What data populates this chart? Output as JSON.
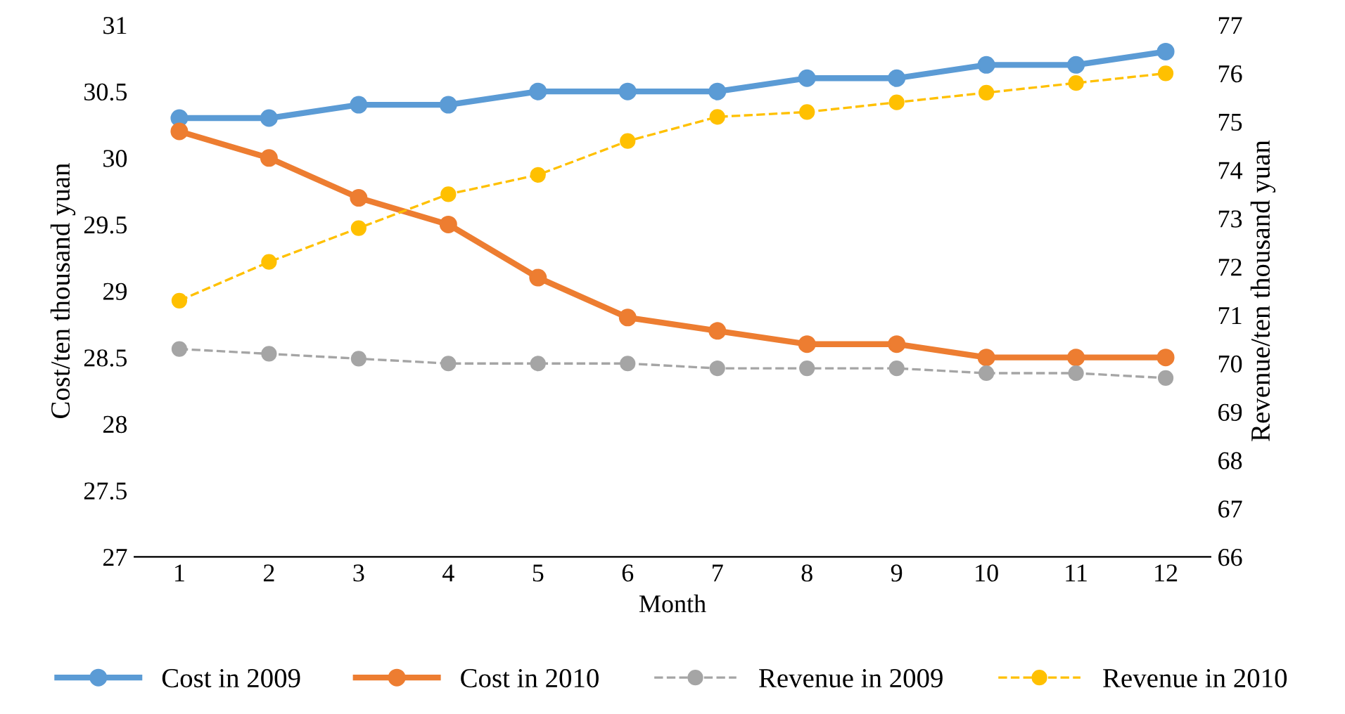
{
  "chart_data": {
    "type": "line",
    "xlabel": "Month",
    "ylabel": "Cost/ten thousand yuan",
    "y2label": "Revenue/ten thousand yuan",
    "categories": [
      "1",
      "2",
      "3",
      "4",
      "5",
      "6",
      "7",
      "8",
      "9",
      "10",
      "11",
      "12"
    ],
    "series": [
      {
        "name": "Cost in 2009",
        "color": "#5b9bd5",
        "line_style": "solid",
        "marker": "circle",
        "values": [
          30.3,
          30.3,
          30.4,
          30.4,
          30.5,
          30.5,
          30.5,
          30.6,
          30.6,
          30.7,
          30.7,
          30.8
        ]
      },
      {
        "name": "Cost in 2010",
        "color": "#ed7d31",
        "line_style": "solid",
        "marker": "circle",
        "values": [
          30.2,
          30.0,
          29.7,
          29.5,
          29.1,
          28.8,
          28.7,
          28.6,
          28.6,
          28.5,
          28.5,
          28.5
        ]
      },
      {
        "name": "Revenue in 2009",
        "color": "#a5a5a5",
        "line_style": "dashed",
        "marker": "circle",
        "axis": "y2",
        "values": [
          70.3,
          70.2,
          70.1,
          70.0,
          70.0,
          70.0,
          69.9,
          69.9,
          69.9,
          69.8,
          69.8,
          69.7
        ]
      },
      {
        "name": "Revenue in 2010",
        "color": "#ffc000",
        "line_style": "dashed",
        "marker": "circle",
        "axis": "y2",
        "values": [
          71.3,
          72.1,
          72.8,
          73.5,
          73.9,
          74.6,
          75.1,
          75.2,
          75.4,
          75.6,
          75.8,
          76.0
        ]
      }
    ],
    "ylim": [
      27,
      31
    ],
    "yticks": [
      27,
      27.5,
      28,
      28.5,
      29,
      29.5,
      30,
      30.5,
      31
    ],
    "y2lim": [
      66,
      77
    ],
    "y2ticks": [
      66,
      67,
      68,
      69,
      70,
      71,
      72,
      73,
      74,
      75,
      76,
      77
    ],
    "grid": false,
    "legend": "bottom"
  }
}
